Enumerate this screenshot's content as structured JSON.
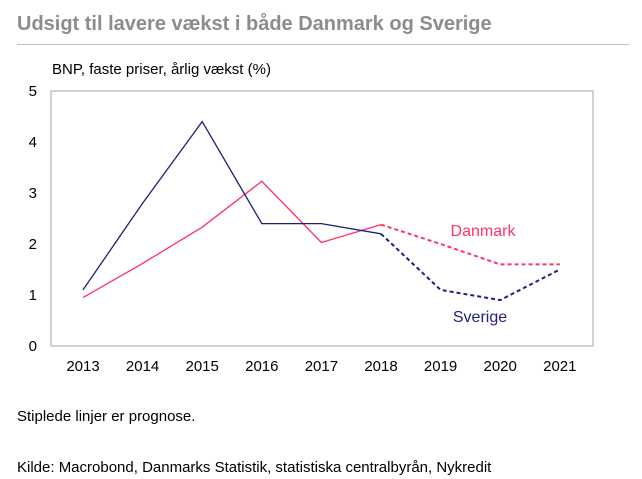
{
  "header": {
    "title": "Udsigt til lavere vækst i både Danmark og Sverige"
  },
  "footer": {
    "note": "Stiplede linjer er prognose.",
    "source": "Kilde: Macrobond, Danmarks Statistik, statistiska centralbyrån, Nykredit"
  },
  "chart_data": {
    "type": "line",
    "title": "Udsigt til lavere vækst i både Danmark og Sverige",
    "ylabel": "BNP, faste priser, årlig vækst (%)",
    "xlabel": "",
    "x": [
      "2013",
      "2014",
      "2015",
      "2016",
      "2017",
      "2018",
      "2019",
      "2020",
      "2021"
    ],
    "ylim": [
      0,
      5
    ],
    "yticks": [
      0,
      1,
      2,
      3,
      4,
      5
    ],
    "grid": false,
    "legend": "inline labels",
    "forecast_from": "2018",
    "series": [
      {
        "name": "Danmark",
        "color": "#ff3366",
        "values": [
          0.95,
          1.62,
          2.33,
          3.23,
          2.03,
          2.38,
          2.0,
          1.6,
          1.6
        ]
      },
      {
        "name": "Sverige",
        "color": "#1f1f7a",
        "values": [
          1.1,
          2.8,
          4.4,
          2.4,
          2.4,
          2.2,
          1.1,
          0.9,
          1.5
        ]
      }
    ]
  }
}
